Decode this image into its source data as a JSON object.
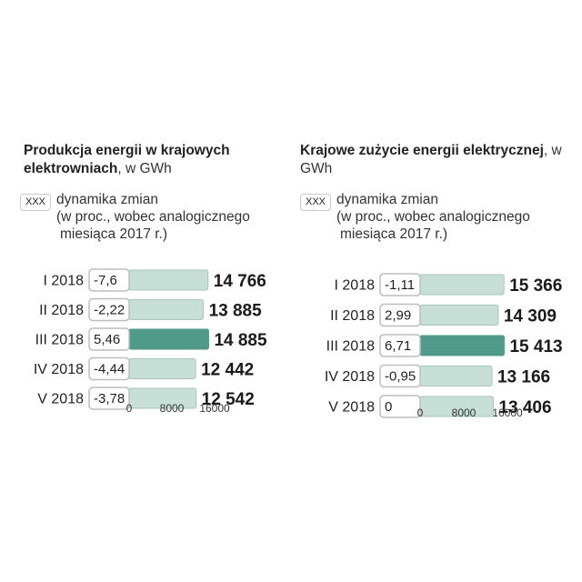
{
  "chart_data": [
    {
      "type": "bar",
      "orientation": "horizontal",
      "title": "Produkcja energii w krajowych elektrowniach",
      "title_suffix": ", w GWh",
      "legend": {
        "box_label": "XXX",
        "lines": [
          "dynamika zmian",
          "(w proc., wobec analogicznego",
          "miesiąca 2017 r.)"
        ]
      },
      "categories": [
        "I 2018",
        "II 2018",
        "III 2018",
        "IV 2018",
        "V 2018"
      ],
      "values": [
        14766,
        13885,
        14885,
        12442,
        12542
      ],
      "value_labels": [
        "14 766",
        "13 885",
        "14 885",
        "12 442",
        "12 542"
      ],
      "changes": [
        "-7,6",
        "-2,22",
        "5,46",
        "-4,44",
        "-3,78"
      ],
      "highlight_index": 2,
      "xlim": [
        0,
        16000
      ],
      "xticks": [
        "0",
        "8000",
        "16000"
      ]
    },
    {
      "type": "bar",
      "orientation": "horizontal",
      "title": "Krajowe zużycie energii elektrycznej",
      "title_suffix": ", w GWh",
      "legend": {
        "box_label": "XXX",
        "lines": [
          "dynamika zmian",
          "(w proc., wobec analogicznego",
          "miesiąca 2017 r.)"
        ]
      },
      "categories": [
        "I 2018",
        "II 2018",
        "III 2018",
        "IV 2018",
        "V 2018"
      ],
      "values": [
        15366,
        14309,
        15413,
        13166,
        13406
      ],
      "value_labels": [
        "15 366",
        "14 309",
        "15 413",
        "13 166",
        "13 406"
      ],
      "changes": [
        "-1,11",
        "2,99",
        "6,71",
        "-0,95",
        "0"
      ],
      "highlight_index": 2,
      "xlim": [
        0,
        16000
      ],
      "xticks": [
        "0",
        "8000",
        "16000"
      ]
    }
  ],
  "colors": {
    "bar": "#c8dfd8",
    "bar_highlight": "#4f9a88",
    "box_border": "#bdbdbd"
  }
}
